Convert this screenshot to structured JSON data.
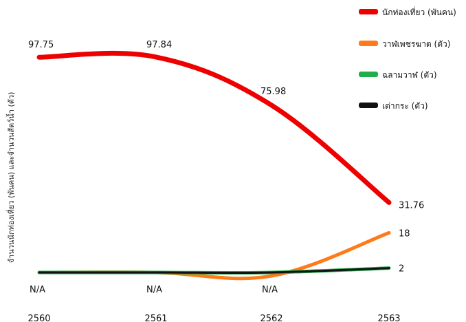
{
  "chart_data": {
    "type": "line",
    "ylabel": "จำนวนนักท่องเที่ยว (พันคน) และจำนวนสัตว์น้ำ (ตัว)",
    "categories": [
      "2560",
      "2561",
      "2562",
      "2563"
    ],
    "ylim": [
      0,
      100
    ],
    "grid": false,
    "legend_position": "top-right",
    "series": [
      {
        "name": "นักท่องเที่ยว (พันคน)",
        "color": "#ee0000",
        "values": [
          97.75,
          97.84,
          75.98,
          31.76
        ],
        "labels": [
          "97.75",
          "97.84",
          "75.98",
          "31.76"
        ]
      },
      {
        "name": "วาฬเพชรฆาต (ตัว)",
        "color": "#ff7a1a",
        "values": [
          null,
          null,
          null,
          18
        ],
        "labels": [
          "N/A",
          "N/A",
          "N/A",
          "18"
        ]
      },
      {
        "name": "ฉลามวาฬ (ตัว)",
        "color": "#1fae4a",
        "values": [
          null,
          null,
          null,
          2
        ],
        "labels": []
      },
      {
        "name": "เต่ากระ (ตัว)",
        "color": "#111111",
        "values": [
          null,
          null,
          null,
          2
        ],
        "labels": [
          "2"
        ]
      }
    ]
  }
}
